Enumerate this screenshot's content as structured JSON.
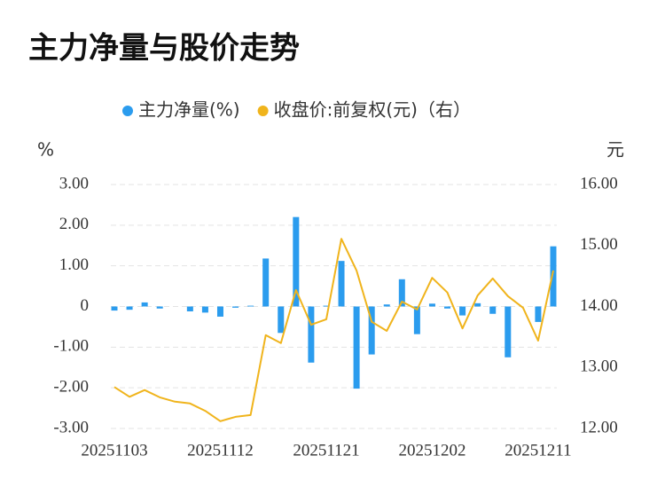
{
  "chart_data": {
    "type": "bar-line",
    "title": "主力净量与股价走势",
    "y_label": "%",
    "y2_label": "元",
    "categories": [
      "20251103",
      null,
      null,
      null,
      null,
      null,
      null,
      "20251112",
      null,
      null,
      null,
      null,
      null,
      null,
      "20251121",
      null,
      null,
      null,
      null,
      null,
      null,
      "20251202",
      null,
      null,
      null,
      null,
      null,
      null,
      "20251211",
      null
    ],
    "series": [
      {
        "name": "主力净量(%)",
        "color": "#2b9cee",
        "type": "bar",
        "values": [
          -0.1,
          -0.08,
          0.1,
          -0.05,
          0,
          -0.12,
          -0.15,
          -0.25,
          -0.03,
          0.02,
          1.18,
          -0.65,
          2.2,
          -1.38,
          0.02,
          1.12,
          -2.02,
          -1.18,
          0.05,
          0.67,
          -0.68,
          0.07,
          -0.05,
          -0.22,
          0.08,
          -0.18,
          -1.25,
          0,
          -0.38,
          1.48
        ]
      },
      {
        "name": "收盘价:前复权(元)（右）",
        "color": "#f0b41c",
        "type": "line",
        "axis": "y2",
        "values": [
          12.68,
          12.52,
          12.63,
          12.51,
          12.44,
          12.41,
          12.29,
          12.12,
          12.19,
          12.22,
          13.53,
          13.4,
          14.27,
          13.7,
          13.79,
          15.11,
          14.59,
          13.75,
          13.6,
          14.08,
          13.95,
          14.47,
          14.23,
          13.64,
          14.18,
          14.46,
          14.17,
          13.98,
          13.44,
          14.59
        ]
      }
    ],
    "ylim": [
      -3,
      3
    ],
    "yticks": [
      {
        "value": -3,
        "label": "-3.00"
      },
      {
        "value": -2,
        "label": "-2.00"
      },
      {
        "value": -1,
        "label": "-1.00"
      },
      0,
      {
        "value": 1,
        "label": "1.00"
      },
      {
        "value": 2,
        "label": "2.00"
      },
      {
        "value": 3,
        "label": "3.00"
      }
    ],
    "y2lim": [
      12,
      16
    ],
    "y2ticks": [
      {
        "value": 12,
        "label": "12.00"
      },
      {
        "value": 13,
        "label": "13.00"
      },
      {
        "value": 14,
        "label": "14.00"
      },
      {
        "value": 15,
        "label": "15.00"
      },
      {
        "value": 16,
        "label": "16.00"
      }
    ],
    "grid": true
  }
}
